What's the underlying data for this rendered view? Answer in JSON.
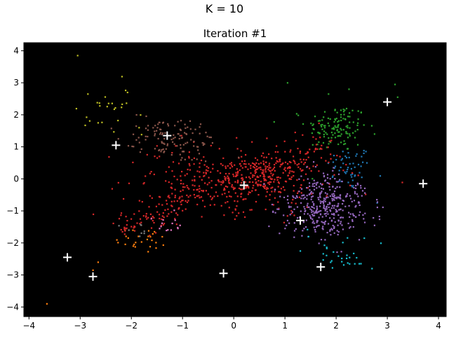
{
  "suptitle": "K = 10",
  "chart_data": {
    "type": "scatter",
    "title": "Iteration #1",
    "xlabel": "",
    "ylabel": "",
    "xlim": [
      -4.1,
      4.15
    ],
    "ylim": [
      -4.3,
      4.25
    ],
    "xticks": [
      -4,
      -3,
      -2,
      -1,
      0,
      1,
      2,
      3,
      4
    ],
    "yticks": [
      -4,
      -3,
      -2,
      -1,
      0,
      1,
      2,
      3,
      4
    ],
    "tick_labels_x": [
      "−4",
      "−3",
      "−2",
      "−1",
      "0",
      "1",
      "2",
      "3",
      "4"
    ],
    "tick_labels_y": [
      "−4",
      "−3",
      "−2",
      "−1",
      "0",
      "1",
      "2",
      "3",
      "4"
    ],
    "background": "#000000",
    "grid": false,
    "legend": "none",
    "marker_color_centroid": "#ffffff",
    "series": [
      {
        "color": "#1f77b4",
        "center": [
          2.25,
          0.35
        ],
        "spread": [
          0.22,
          0.35
        ],
        "n": 50,
        "points": [
          [
            2.0,
            0.6
          ],
          [
            2.6,
            0.5
          ],
          [
            2.5,
            0.05
          ],
          [
            2.8,
            -0.75
          ]
        ]
      },
      {
        "color": "#ff7f0e",
        "center": [
          -1.75,
          -1.9
        ],
        "spread": [
          0.28,
          0.22
        ],
        "n": 25,
        "points": [
          [
            -3.65,
            -3.9
          ],
          [
            -2.65,
            -2.6
          ],
          [
            -2.75,
            -2.85
          ],
          [
            -1.55,
            -1.65
          ]
        ]
      },
      {
        "color": "#2ca02c",
        "center": [
          2.0,
          1.6
        ],
        "spread": [
          0.3,
          0.38
        ],
        "n": 130,
        "points": [
          [
            1.05,
            3.0
          ],
          [
            1.85,
            2.65
          ],
          [
            2.25,
            2.8
          ],
          [
            3.15,
            2.95
          ],
          [
            3.2,
            2.55
          ],
          [
            2.75,
            1.4
          ]
        ]
      },
      {
        "color": "#d62728",
        "center": [
          0.15,
          -0.05
        ],
        "spread": [
          0.9,
          0.5
        ],
        "n": 650,
        "points": [
          [
            -1.7,
            -1.25
          ],
          [
            -2.1,
            -1.55
          ],
          [
            1.2,
            1.45
          ],
          [
            1.6,
            0.95
          ],
          [
            0.7,
            -0.65
          ]
        ]
      },
      {
        "color": "#9467bd",
        "center": [
          1.8,
          -0.85
        ],
        "spread": [
          0.42,
          0.48
        ],
        "n": 360,
        "points": [
          [
            0.75,
            -0.8
          ],
          [
            1.05,
            -1.3
          ],
          [
            2.75,
            -1.45
          ],
          [
            2.45,
            -1.9
          ]
        ]
      },
      {
        "color": "#8c564b",
        "center": [
          -1.2,
          1.25
        ],
        "spread": [
          0.45,
          0.32
        ],
        "n": 120,
        "points": [
          [
            -1.9,
            2.0
          ],
          [
            -0.55,
            0.55
          ],
          [
            -0.7,
            1.0
          ]
        ]
      },
      {
        "color": "#e377c2",
        "center": [
          -1.25,
          -1.35
        ],
        "spread": [
          0.18,
          0.15
        ],
        "n": 12,
        "points": [
          [
            -1.45,
            -1.55
          ],
          [
            -1.05,
            -1.45
          ]
        ]
      },
      {
        "color": "#7f7f7f",
        "center": [
          -1.85,
          -1.55
        ],
        "spread": [
          0.15,
          0.12
        ],
        "n": 6,
        "points": [
          [
            -2.05,
            -1.6
          ],
          [
            -1.75,
            -1.7
          ]
        ]
      },
      {
        "color": "#bcbd22",
        "center": [
          -2.45,
          2.15
        ],
        "spread": [
          0.35,
          0.4
        ],
        "n": 24,
        "points": [
          [
            -3.05,
            3.85
          ],
          [
            -2.85,
            2.65
          ],
          [
            -2.65,
            1.75
          ],
          [
            -1.85,
            1.6
          ]
        ]
      },
      {
        "color": "#17becf",
        "center": [
          2.05,
          -2.3
        ],
        "spread": [
          0.3,
          0.25
        ],
        "n": 28,
        "points": [
          [
            1.3,
            -2.25
          ],
          [
            2.7,
            -2.8
          ],
          [
            2.45,
            -2.65
          ],
          [
            2.55,
            -1.85
          ]
        ]
      }
    ],
    "centroids": [
      [
        3.7,
        -0.15
      ],
      [
        -2.75,
        -3.05
      ],
      [
        3.0,
        2.4
      ],
      [
        0.2,
        -0.2
      ],
      [
        1.3,
        -1.3
      ],
      [
        -1.3,
        1.35
      ],
      [
        -3.25,
        -2.45
      ],
      [
        -0.2,
        -2.95
      ],
      [
        -2.3,
        1.05
      ],
      [
        1.7,
        -2.75
      ]
    ]
  }
}
